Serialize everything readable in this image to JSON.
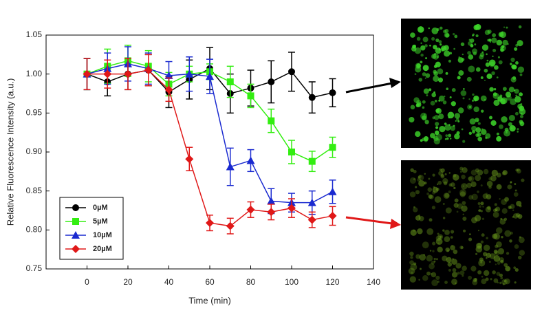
{
  "chart_data": {
    "type": "line",
    "xlabel": "Time (min)",
    "ylabel": "Relative Fluorescence Intensity (a.u.)",
    "x": [
      0,
      10,
      20,
      30,
      40,
      50,
      60,
      70,
      80,
      90,
      100,
      110,
      120
    ],
    "xlim": [
      -20,
      140
    ],
    "xticks": [
      0,
      20,
      40,
      60,
      80,
      100,
      120,
      140
    ],
    "ylim": [
      0.75,
      1.05
    ],
    "yticks": [
      {
        "value": 0.75,
        "label": "0.75"
      },
      {
        "value": 0.8,
        "label": "0.80"
      },
      {
        "value": 0.85,
        "label": "0.85"
      },
      {
        "value": 0.9,
        "label": "0.90"
      },
      {
        "value": 0.95,
        "label": "0.95"
      },
      {
        "value": 1.0,
        "label": "1.00"
      },
      {
        "value": 1.05,
        "label": "1.05"
      }
    ],
    "legend": "lower left",
    "series": [
      {
        "name": "0µM",
        "color": "#000000",
        "marker": "circle",
        "values": [
          1.0,
          0.99,
          1.0,
          1.005,
          0.977,
          0.993,
          1.007,
          0.975,
          0.982,
          0.99,
          1.003,
          0.97,
          0.976
        ],
        "errors": [
          0.02,
          0.018,
          0.02,
          0.02,
          0.02,
          0.025,
          0.027,
          0.025,
          0.023,
          0.027,
          0.025,
          0.02,
          0.018
        ]
      },
      {
        "name": "5µM",
        "color": "#33ee11",
        "marker": "square",
        "values": [
          1.0,
          1.01,
          1.017,
          1.01,
          0.987,
          1.0,
          1.003,
          0.99,
          0.972,
          0.94,
          0.9,
          0.888,
          0.906
        ],
        "errors": [
          0.02,
          0.022,
          0.02,
          0.02,
          0.015,
          0.01,
          0.01,
          0.02,
          0.015,
          0.015,
          0.015,
          0.013,
          0.013
        ]
      },
      {
        "name": "10µM",
        "color": "#1a2ad0",
        "marker": "triangle",
        "values": [
          1.0,
          1.007,
          1.013,
          1.007,
          0.998,
          1.0,
          0.997,
          0.881,
          0.889,
          0.837,
          0.835,
          0.835,
          0.849
        ],
        "errors": [
          0.02,
          0.02,
          0.022,
          0.02,
          0.018,
          0.022,
          0.022,
          0.024,
          0.014,
          0.016,
          0.012,
          0.015,
          0.015
        ]
      },
      {
        "name": "20µM",
        "color": "#e01818",
        "marker": "diamond",
        "values": [
          1.0,
          1.0,
          1.0,
          1.005,
          0.98,
          0.891,
          0.809,
          0.805,
          0.826,
          0.823,
          0.828,
          0.813,
          0.818
        ],
        "errors": [
          0.02,
          0.018,
          0.02,
          0.02,
          0.015,
          0.015,
          0.01,
          0.01,
          0.01,
          0.01,
          0.012,
          0.01,
          0.012
        ]
      }
    ]
  }
}
